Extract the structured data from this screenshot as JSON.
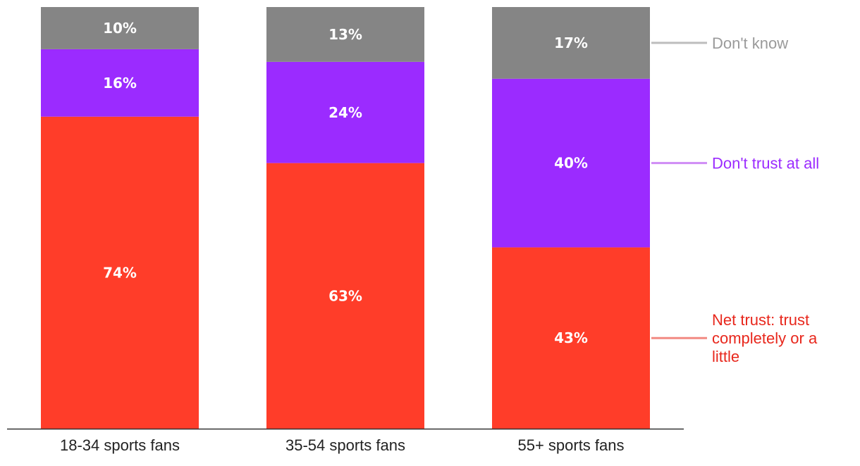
{
  "chart_data": {
    "type": "bar",
    "stacked": true,
    "percent_stacked": true,
    "categories": [
      "18-34 sports fans",
      "35-54 sports fans",
      "55+ sports fans"
    ],
    "series": [
      {
        "name": "Net trust: trust completely or a little",
        "values": [
          74,
          63,
          43
        ],
        "labels": [
          "74%",
          "63%",
          "43%"
        ],
        "color": "#FF3D29",
        "legend_color": "#E8271C",
        "connector_color": "#F28A82"
      },
      {
        "name": "Don't trust at all",
        "values": [
          16,
          24,
          40
        ],
        "labels": [
          "16%",
          "24%",
          "40%"
        ],
        "color": "#9B2BFF",
        "legend_color": "#9B2BFF",
        "connector_color": "#CF8CF5"
      },
      {
        "name": "Don't know",
        "values": [
          10,
          13,
          17
        ],
        "labels": [
          "10%",
          "13%",
          "17%"
        ],
        "color": "#858585",
        "legend_color": "#9A9A9A",
        "connector_color": "#BDBDBD"
      }
    ],
    "ylim": [
      0,
      100
    ],
    "grid": false,
    "legend_placement": "right, aligned with last bar segments"
  }
}
